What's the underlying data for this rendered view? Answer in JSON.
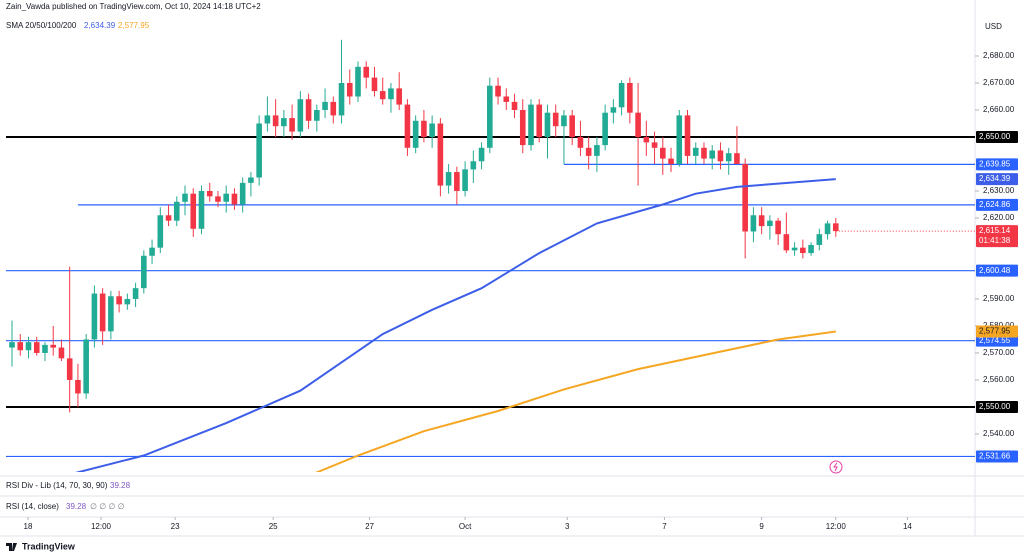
{
  "chart_data": {
    "type": "candlestick",
    "header": "Zain_Vawda published on TradingView.com, Oct 10, 2024 14:18 UTC+2",
    "currency": "USD",
    "brand": "TradingView",
    "up_color": "#22ab94",
    "down_color": "#f23645",
    "xlim": [
      -1.46,
      116.9
    ],
    "ylim": [
      2525.9,
      2696.3
    ],
    "xticks": [
      {
        "value": 1.94,
        "label": "18"
      },
      {
        "value": 10.8,
        "label": "12:00"
      },
      {
        "value": 19.8,
        "label": "23"
      },
      {
        "value": 31.7,
        "label": "25"
      },
      {
        "value": 43.4,
        "label": "27"
      },
      {
        "value": 55,
        "label": "Oct"
      },
      {
        "value": 67.4,
        "label": "3"
      },
      {
        "value": 79.2,
        "label": "7"
      },
      {
        "value": 91,
        "label": "9"
      },
      {
        "value": 100,
        "label": "12:00"
      },
      {
        "value": 108.7,
        "label": "14"
      }
    ],
    "yticks": [
      {
        "value": 2680,
        "label": "2,680.00"
      },
      {
        "value": 2670,
        "label": "2,670.00"
      },
      {
        "value": 2660,
        "label": "2,660.00"
      },
      {
        "value": 2630,
        "label": "2,630.00"
      },
      {
        "value": 2620,
        "label": "2,620.00"
      },
      {
        "value": 2590,
        "label": "2,590.00"
      },
      {
        "value": 2580,
        "label": "2,580.00"
      },
      {
        "value": 2570,
        "label": "2,570.00"
      },
      {
        "value": 2560,
        "label": "2,560.00"
      },
      {
        "value": 2540,
        "label": "2,540.00"
      }
    ],
    "candles": {
      "open": [
        2572,
        2574,
        2571,
        2574,
        2570,
        2573,
        2572,
        2568,
        2560,
        2555,
        2575,
        2592,
        2578,
        2591,
        2588,
        2590,
        2594,
        2606,
        2609,
        2621,
        2619,
        2626,
        2629,
        2616,
        2630,
        2628,
        2626,
        2629,
        2625,
        2633,
        2635,
        2655,
        2658,
        2654,
        2657,
        2652,
        2664,
        2656,
        2660,
        2663,
        2658,
        2670,
        2665,
        2676,
        2672,
        2667,
        2664,
        2668,
        2662,
        2646,
        2656,
        2650,
        2655,
        2632,
        2637,
        2630,
        2638,
        2641,
        2646,
        2669,
        2665,
        2663,
        2660,
        2647,
        2662,
        2650,
        2659,
        2654,
        2658,
        2650,
        2646,
        2643,
        2647,
        2659,
        2661,
        2670,
        2659,
        2650,
        2648,
        2646,
        2642,
        2640,
        2658,
        2643,
        2646,
        2642,
        2645,
        2641,
        2644,
        2640,
        2615,
        2621,
        2617,
        2619,
        2614,
        2608,
        2609,
        2607,
        2610,
        2614,
        2618
      ],
      "high": [
        2582,
        2577,
        2576,
        2576,
        2574,
        2580,
        2575,
        2602,
        2566,
        2577,
        2595,
        2594,
        2593,
        2593,
        2592,
        2596,
        2608,
        2612,
        2624,
        2625,
        2628,
        2632,
        2631,
        2632,
        2633,
        2630,
        2632,
        2631,
        2635,
        2637,
        2658,
        2665,
        2664,
        2660,
        2662,
        2667,
        2666,
        2662,
        2668,
        2665,
        2686,
        2675,
        2678,
        2678,
        2676,
        2672,
        2670,
        2674,
        2664,
        2658,
        2660,
        2658,
        2657,
        2640,
        2639,
        2641,
        2645,
        2648,
        2672,
        2672,
        2668,
        2666,
        2664,
        2664,
        2664,
        2662,
        2662,
        2660,
        2660,
        2656,
        2650,
        2650,
        2662,
        2664,
        2671,
        2672,
        2670,
        2656,
        2652,
        2650,
        2646,
        2660,
        2660,
        2648,
        2648,
        2647,
        2648,
        2646,
        2654,
        2642,
        2624,
        2624,
        2621,
        2620,
        2622,
        2611,
        2612,
        2611,
        2616,
        2619,
        2620
      ],
      "low": [
        2565,
        2569,
        2568,
        2569,
        2567,
        2569,
        2567,
        2548,
        2550,
        2553,
        2572,
        2573,
        2575,
        2585,
        2586,
        2587,
        2592,
        2603,
        2607,
        2617,
        2617,
        2621,
        2613,
        2614,
        2626,
        2624,
        2622,
        2623,
        2622,
        2628,
        2632,
        2652,
        2650,
        2650,
        2649,
        2650,
        2653,
        2652,
        2657,
        2655,
        2655,
        2662,
        2663,
        2668,
        2665,
        2662,
        2659,
        2660,
        2643,
        2644,
        2648,
        2646,
        2628,
        2629,
        2625,
        2628,
        2633,
        2638,
        2644,
        2662,
        2660,
        2657,
        2644,
        2645,
        2648,
        2642,
        2650,
        2640,
        2647,
        2643,
        2638,
        2637,
        2645,
        2655,
        2658,
        2655,
        2632,
        2643,
        2640,
        2636,
        2637,
        2639,
        2640,
        2640,
        2640,
        2638,
        2638,
        2636,
        2640,
        2605,
        2611,
        2614,
        2612,
        2610,
        2607,
        2606,
        2605,
        2606,
        2608,
        2612,
        2613
      ],
      "close": [
        2574,
        2571,
        2574,
        2570,
        2573,
        2572,
        2568,
        2560,
        2555,
        2575,
        2592,
        2578,
        2591,
        2588,
        2590,
        2594,
        2606,
        2609,
        2621,
        2619,
        2626,
        2629,
        2616,
        2630,
        2628,
        2626,
        2629,
        2625,
        2633,
        2635,
        2655,
        2658,
        2654,
        2657,
        2652,
        2664,
        2656,
        2660,
        2663,
        2658,
        2670,
        2665,
        2676,
        2672,
        2667,
        2664,
        2668,
        2662,
        2646,
        2656,
        2650,
        2655,
        2632,
        2637,
        2630,
        2638,
        2641,
        2646,
        2669,
        2665,
        2663,
        2660,
        2647,
        2662,
        2650,
        2659,
        2654,
        2658,
        2650,
        2646,
        2643,
        2647,
        2659,
        2661,
        2670,
        2659,
        2650,
        2648,
        2646,
        2642,
        2640,
        2658,
        2643,
        2646,
        2642,
        2645,
        2641,
        2644,
        2640,
        2615,
        2621,
        2617,
        2619,
        2614,
        2608,
        2609,
        2607,
        2610,
        2614,
        2618,
        2615.14
      ]
    },
    "last_price_label": "2,615.14",
    "countdown": "01:41:38",
    "indicator": {
      "name": "SMA 20/50/100/200",
      "lines": [
        {
          "color": "#3d5ee8",
          "x": [
            7,
            16,
            26,
            35,
            45,
            51,
            57,
            64,
            71,
            79,
            83,
            88,
            100
          ],
          "values": [
            2525,
            2532,
            2544,
            2556,
            2577,
            2586,
            2594,
            2607,
            2618,
            2625,
            2629,
            2631.5,
            2634.39
          ],
          "last_label": "2,634.39"
        },
        {
          "color": "#f5a623",
          "x": [
            36,
            42,
            50,
            59,
            67,
            76,
            86,
            93,
            100
          ],
          "values": [
            2524.5,
            2532,
            2541,
            2548.5,
            2556.5,
            2564,
            2570.5,
            2575,
            2577.95
          ],
          "last_label": "2,577.95"
        }
      ]
    },
    "levels": [
      {
        "value": 2650,
        "label": "2,650.00",
        "color": "#000000"
      },
      {
        "value": 2639.85,
        "label": "2,639.85",
        "color": "#2962ff",
        "from": 67
      },
      {
        "value": 2624.86,
        "label": "2,624.86",
        "color": "#2962ff",
        "from": 8
      },
      {
        "value": 2600.48,
        "label": "2,600.48",
        "color": "#2962ff"
      },
      {
        "value": 2574.55,
        "label": "2,574.55",
        "color": "#2962ff"
      },
      {
        "value": 2550,
        "label": "2,550.00",
        "color": "#000000"
      },
      {
        "value": 2531.66,
        "label": "2,531.66",
        "color": "#2962ff"
      }
    ],
    "panes": [
      {
        "name": "RSI Div - Lib (14, 70, 30, 90)",
        "value": 39.28
      },
      {
        "name": "RSI (14, close)",
        "value": 39.28,
        "extra": "∅ ∅ ∅ ∅"
      }
    ]
  }
}
